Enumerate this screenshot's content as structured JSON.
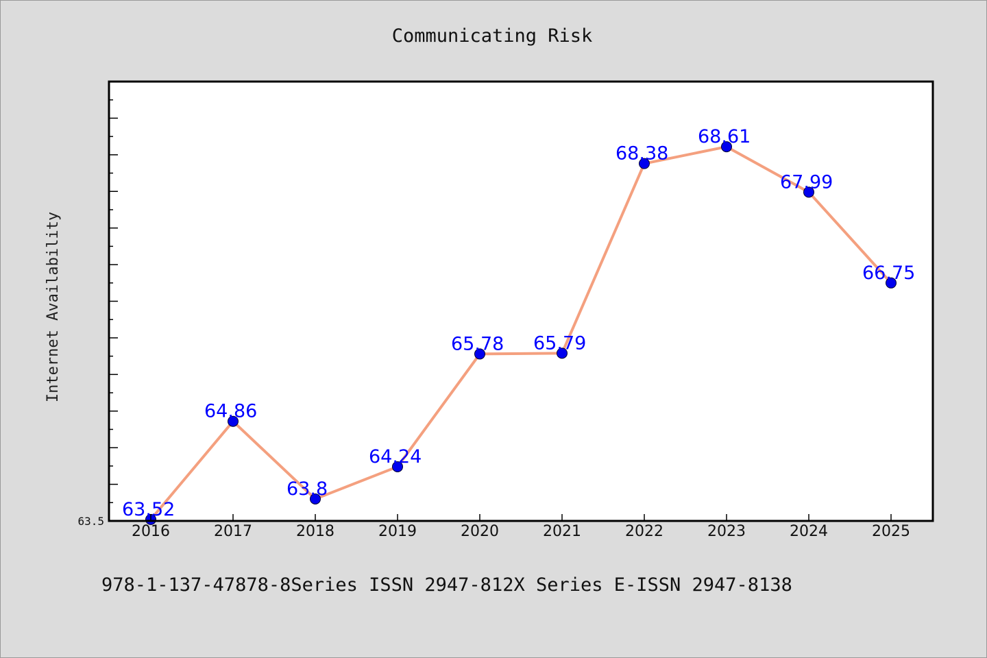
{
  "chart_data": {
    "type": "line",
    "title": "Communicating Risk",
    "xlabel": "",
    "ylabel": "Internet Availability",
    "categories": [
      "2016",
      "2017",
      "2018",
      "2019",
      "2020",
      "2021",
      "2022",
      "2023",
      "2024",
      "2025"
    ],
    "series": [
      {
        "values": [
          63.52,
          64.86,
          63.8,
          64.24,
          65.78,
          65.79,
          68.38,
          68.61,
          67.99,
          66.75
        ],
        "labels": [
          "63.52",
          "64.86",
          "63.8",
          "64.24",
          "65.78",
          "65.79",
          "68.38",
          "68.61",
          "67.99",
          "66.75"
        ]
      }
    ],
    "ylim": [
      63.5,
      69.5
    ],
    "yticks_labeled": [
      "63.5"
    ],
    "grid": false,
    "line_color": "#f4a07f",
    "marker_color": "#0000ee",
    "label_color": "#0000ff"
  },
  "footer": {
    "text": "978-1-137-47878-8Series ISSN 2947-812X Series E-ISSN 2947-8138"
  }
}
